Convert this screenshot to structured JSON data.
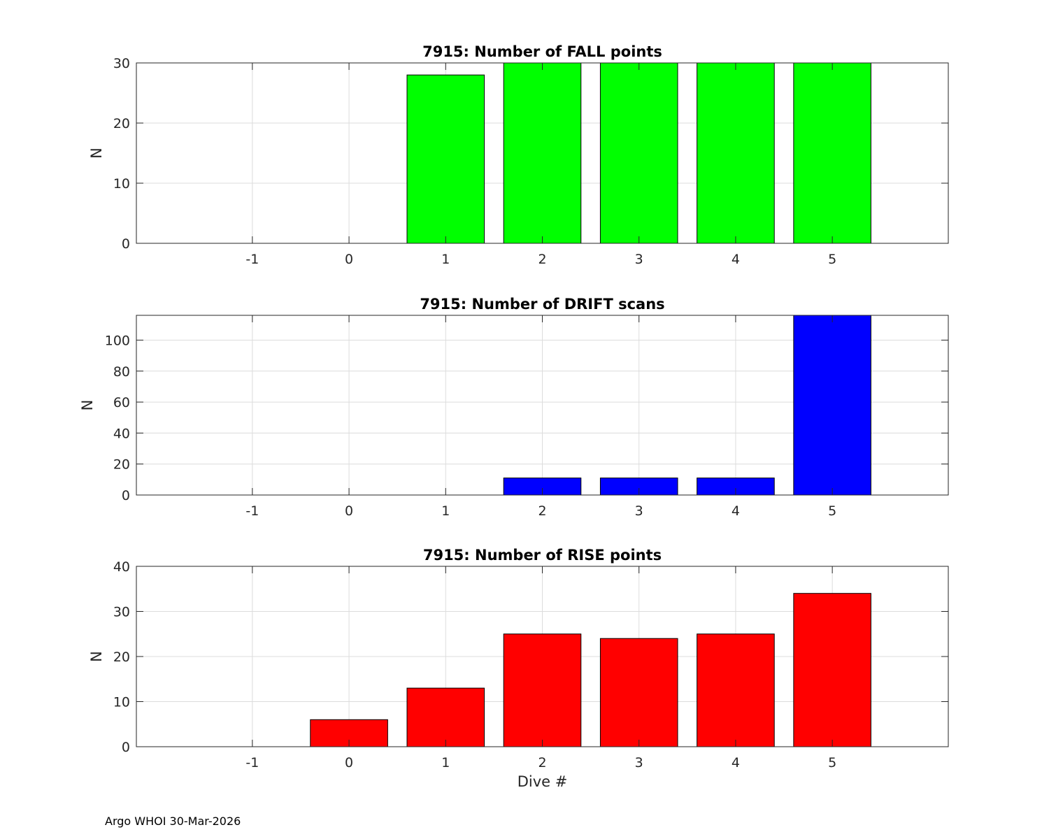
{
  "footer": "Argo WHOI 30-Mar-2026",
  "chart_data": [
    {
      "type": "bar",
      "title": "7915: Number of FALL points",
      "xlabel": "",
      "ylabel": "N",
      "xlim": [
        -2.2,
        6.2
      ],
      "ylim": [
        0,
        30
      ],
      "yticks": [
        0,
        10,
        20,
        30
      ],
      "xticks": [
        -1,
        0,
        1,
        2,
        3,
        4,
        5
      ],
      "grid": true,
      "categories": [
        1,
        2,
        3,
        4,
        5
      ],
      "values": [
        28,
        30,
        30,
        30,
        30
      ],
      "color": "#00ff00"
    },
    {
      "type": "bar",
      "title": "7915: Number of DRIFT scans",
      "xlabel": "",
      "ylabel": "N",
      "xlim": [
        -2.2,
        6.2
      ],
      "ylim": [
        0,
        116
      ],
      "yticks": [
        0,
        20,
        40,
        60,
        80,
        100
      ],
      "xticks": [
        -1,
        0,
        1,
        2,
        3,
        4,
        5
      ],
      "grid": true,
      "categories": [
        2,
        3,
        4,
        5
      ],
      "values": [
        11,
        11,
        11,
        116
      ],
      "color": "#0000ff"
    },
    {
      "type": "bar",
      "title": "7915: Number of RISE points",
      "xlabel": "Dive #",
      "ylabel": "N",
      "xlim": [
        -2.2,
        6.2
      ],
      "ylim": [
        0,
        40
      ],
      "yticks": [
        0,
        10,
        20,
        30,
        40
      ],
      "xticks": [
        -1,
        0,
        1,
        2,
        3,
        4,
        5
      ],
      "grid": true,
      "categories": [
        0,
        1,
        2,
        3,
        4,
        5
      ],
      "values": [
        6,
        13,
        25,
        24,
        25,
        34
      ],
      "color": "#ff0000"
    }
  ]
}
